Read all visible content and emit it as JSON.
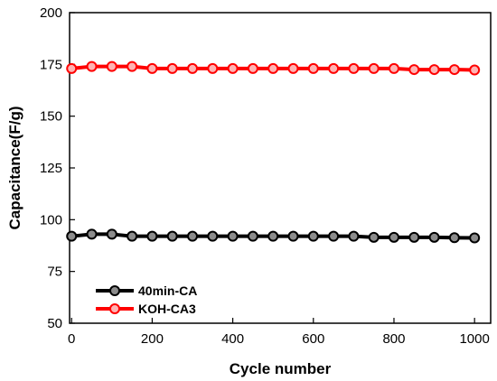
{
  "chart_data": {
    "type": "line",
    "xlabel": "Cycle number",
    "ylabel": "Capacitance(F/g)",
    "xlim": [
      -5,
      1040
    ],
    "ylim": [
      50,
      200
    ],
    "xticks": [
      0,
      200,
      400,
      600,
      800,
      1000
    ],
    "yticks": [
      50,
      75,
      100,
      125,
      150,
      175,
      200
    ],
    "x": [
      0,
      50,
      100,
      150,
      200,
      250,
      300,
      350,
      400,
      450,
      500,
      550,
      600,
      650,
      700,
      750,
      800,
      850,
      900,
      950,
      1000
    ],
    "series": [
      {
        "name": "40min-CA",
        "color": "#000000",
        "marker_fill": "#8c8c8c",
        "values": [
          92,
          93,
          93,
          92,
          92,
          92,
          92,
          92,
          92,
          92,
          92,
          92,
          92,
          92,
          92,
          91.5,
          91.5,
          91.5,
          91.5,
          91.3,
          91.2
        ]
      },
      {
        "name": "KOH-CA3",
        "color": "#ff0000",
        "marker_fill": "#ffb3b3",
        "values": [
          173,
          174,
          174,
          174,
          173,
          173,
          173,
          173,
          173,
          173,
          173,
          173,
          173,
          173,
          173,
          173,
          173,
          172.5,
          172.5,
          172.5,
          172.3
        ]
      }
    ],
    "legend": {
      "position": "bottom-left"
    },
    "grid": false
  }
}
